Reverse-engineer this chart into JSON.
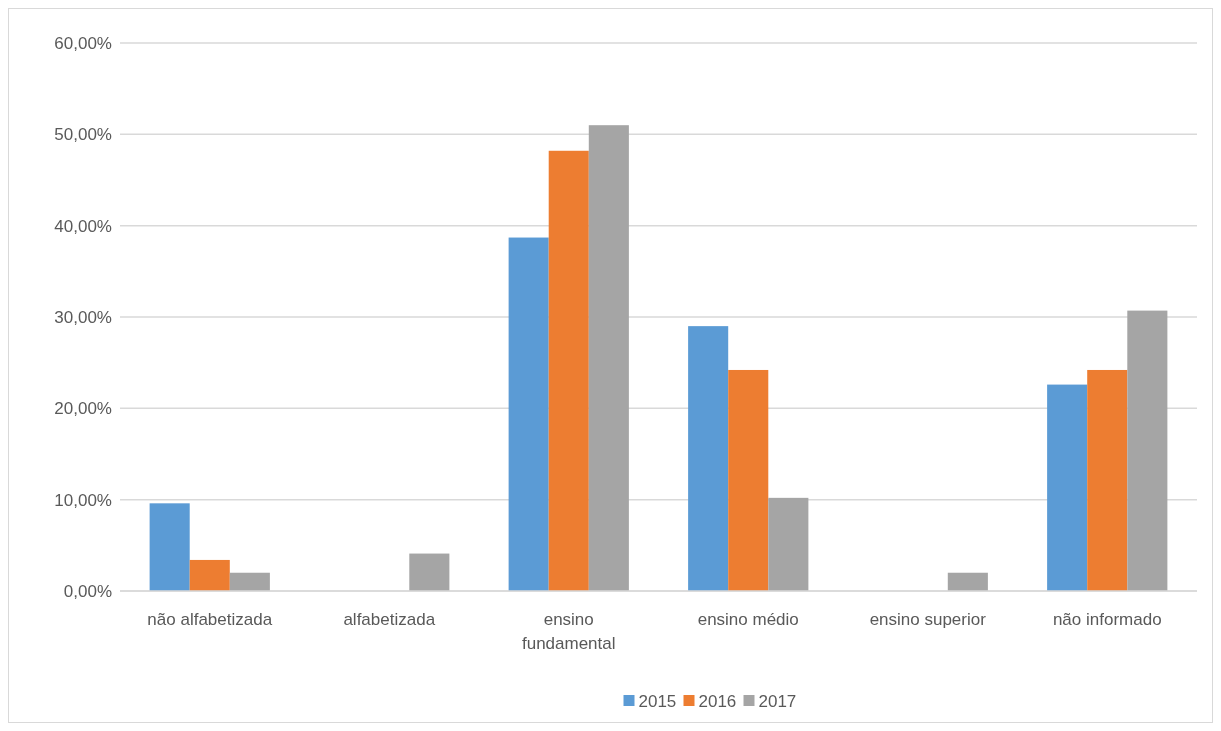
{
  "chart_data": {
    "type": "bar",
    "categories": [
      "não alfabetizada",
      "alfabetizada",
      "ensino fundamental",
      "ensino médio",
      "ensino superior",
      "não informado"
    ],
    "series": [
      {
        "name": "2015",
        "color": "#5b9bd5",
        "values": [
          9.6,
          0,
          38.7,
          29.0,
          0,
          22.6
        ]
      },
      {
        "name": "2016",
        "color": "#ed7d31",
        "values": [
          3.4,
          0,
          48.2,
          24.2,
          0,
          24.2
        ]
      },
      {
        "name": "2017",
        "color": "#a5a5a5",
        "values": [
          2.0,
          4.1,
          51.0,
          10.2,
          2.0,
          30.7
        ]
      }
    ],
    "ylim": [
      0,
      60
    ],
    "yticks": [
      {
        "value": 0,
        "label": "0,00%"
      },
      {
        "value": 10,
        "label": "10,00%"
      },
      {
        "value": 20,
        "label": "20,00%"
      },
      {
        "value": 30,
        "label": "30,00%"
      },
      {
        "value": 40,
        "label": "40,00%"
      },
      {
        "value": 50,
        "label": "50,00%"
      },
      {
        "value": 60,
        "label": "60,00%"
      }
    ],
    "grid": "y",
    "legend": "bottom"
  }
}
